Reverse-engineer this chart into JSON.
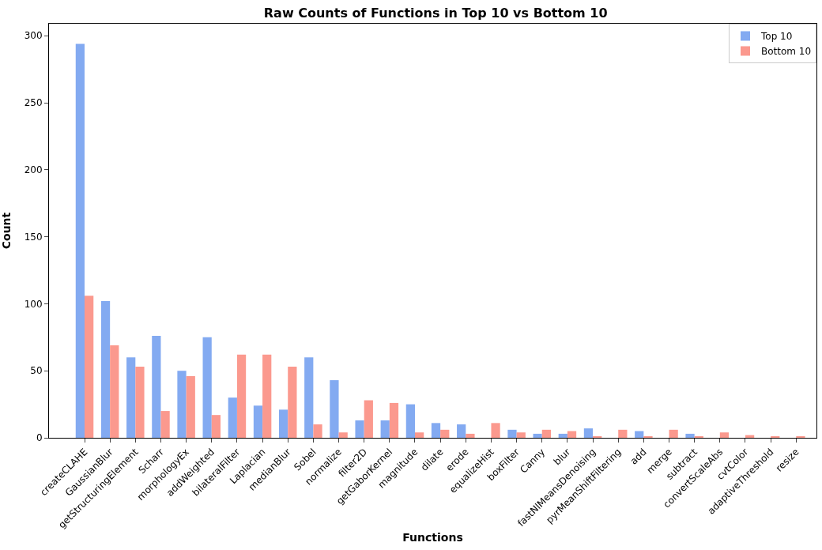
{
  "chart_data": {
    "type": "bar",
    "title": "Raw Counts of Functions in Top 10 vs Bottom 10",
    "xlabel": "Functions",
    "ylabel": "Count",
    "categories": [
      "createCLAHE",
      "GaussianBlur",
      "getStructuringElement",
      "Scharr",
      "morphologyEx",
      "addWeighted",
      "bilateralFilter",
      "Laplacian",
      "medianBlur",
      "Sobel",
      "normalize",
      "filter2D",
      "getGaborKernel",
      "magnitude",
      "dilate",
      "erode",
      "equalizeHist",
      "boxFilter",
      "Canny",
      "blur",
      "fastNlMeansDenoising",
      "pyrMeanShiftFiltering",
      "add",
      "merge",
      "subtract",
      "convertScaleAbs",
      "cvtColor",
      "adaptiveThreshold",
      "resize"
    ],
    "series": [
      {
        "name": "Top 10",
        "color": "#83aaf1",
        "values": [
          294,
          102,
          60,
          76,
          50,
          75,
          30,
          24,
          21,
          60,
          43,
          13,
          13,
          25,
          11,
          10,
          0,
          6,
          3,
          3,
          7,
          0,
          5,
          0,
          3,
          0,
          0,
          0,
          0
        ]
      },
      {
        "name": "Bottom 10",
        "color": "#fb998e",
        "values": [
          106,
          69,
          53,
          20,
          46,
          17,
          62,
          62,
          53,
          10,
          4,
          28,
          26,
          4,
          6,
          3,
          11,
          4,
          6,
          5,
          1,
          6,
          1,
          6,
          1,
          4,
          2,
          1,
          1
        ]
      }
    ],
    "ylim": [
      0,
      309
    ],
    "yticks": [
      0,
      50,
      100,
      150,
      200,
      250,
      300
    ],
    "legend": "top right"
  }
}
